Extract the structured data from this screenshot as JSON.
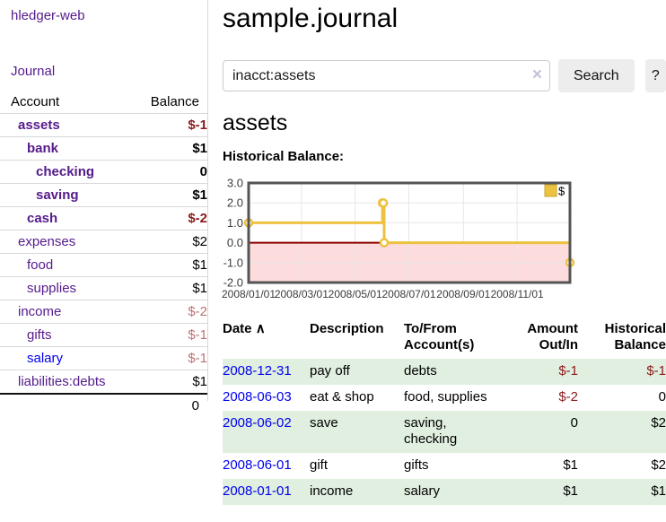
{
  "app": {
    "title": "hledger-web",
    "nav_journal": "Journal"
  },
  "colors": {
    "link_visited": "#551A8B",
    "link_unvisited": "#0000EE",
    "negative_strong": "#8b1a1a",
    "negative_weak": "#bd7272",
    "row_highlight_green": "#e0efdf",
    "button_bg": "#ededed",
    "chart_line_gold": "#edc240",
    "chart_negative_region": "#fcdcdc",
    "chart_zero_line": "#8b0000"
  },
  "sidebar": {
    "header": {
      "account": "Account",
      "balance": "Balance"
    },
    "accounts": [
      {
        "name": "assets",
        "balance": "$-1",
        "indent": 1,
        "bold": true,
        "balance_style": "neg-strong"
      },
      {
        "name": "bank",
        "balance": "$1",
        "indent": 2,
        "bold": true,
        "balance_style": "pos"
      },
      {
        "name": "checking",
        "balance": "0",
        "indent": 3,
        "bold": true,
        "balance_style": "pos"
      },
      {
        "name": "saving",
        "balance": "$1",
        "indent": 3,
        "bold": true,
        "balance_style": "pos"
      },
      {
        "name": "cash",
        "balance": "$-2",
        "indent": 2,
        "bold": true,
        "balance_style": "neg-strong"
      },
      {
        "name": "expenses",
        "balance": "$2",
        "indent": 1,
        "bold": false,
        "balance_style": "pos"
      },
      {
        "name": "food",
        "balance": "$1",
        "indent": 2,
        "bold": false,
        "balance_style": "pos"
      },
      {
        "name": "supplies",
        "balance": "$1",
        "indent": 2,
        "bold": false,
        "balance_style": "pos"
      },
      {
        "name": "income",
        "balance": "$-2",
        "indent": 1,
        "bold": false,
        "balance_style": "neg-weak"
      },
      {
        "name": "gifts",
        "balance": "$-1",
        "indent": 2,
        "bold": false,
        "balance_style": "neg-weak"
      },
      {
        "name": "salary",
        "balance": "$-1",
        "indent": 2,
        "bold": false,
        "balance_style": "neg-weak",
        "link_style": "unvisited"
      },
      {
        "name": "liabilities:debts",
        "balance": "$1",
        "indent": 1,
        "bold": false,
        "balance_style": "pos"
      }
    ],
    "total": "0"
  },
  "main": {
    "title": "sample.journal",
    "search": {
      "value": "inacct:assets",
      "clear_icon": "×",
      "button": "Search",
      "help_button": "?"
    },
    "account_heading": "assets",
    "chart_label": "Historical Balance:"
  },
  "chart_data": {
    "type": "line",
    "step": true,
    "title": "Historical Balance:",
    "series": [
      {
        "name": "$",
        "color": "#edc240",
        "points": [
          [
            "2008-01-01",
            1
          ],
          [
            "2008-06-01",
            2
          ],
          [
            "2008-06-02",
            2
          ],
          [
            "2008-06-03",
            0
          ],
          [
            "2008-12-31",
            -1
          ]
        ]
      }
    ],
    "x_ticks": [
      "2008/01/01",
      "2008/03/01",
      "2008/05/01",
      "2008/07/01",
      "2008/09/01",
      "2008/11/01"
    ],
    "y_ticks": [
      "3.0",
      "2.0",
      "1.0",
      "0.0",
      "-1.0",
      "-2.0"
    ],
    "ylim": [
      -2,
      3
    ],
    "x_range": [
      "2008-01-01",
      "2008-12-31"
    ],
    "x_span_days": 365,
    "grid": true,
    "legend": {
      "label": "$",
      "position": "top-right",
      "color": "#edc240",
      "box_border": "#c7a62e"
    },
    "negative_region_color": "#fcdcdc",
    "zero_line_color": "#8b0000",
    "grid_color": "#e7e7e7",
    "border_color": "#545454",
    "axis_label_color": "#3c3c3c"
  },
  "register": {
    "headers": {
      "date": "Date",
      "sort": "∧",
      "description": "Description",
      "accounts": "To/From Account(s)",
      "amount": "Amount Out/In",
      "balance": "Historical Balance"
    },
    "rows": [
      {
        "date": "2008-12-31",
        "description": "pay off",
        "accounts": "debts",
        "amount": "$-1",
        "amount_neg": true,
        "balance": "$-1",
        "balance_neg": true
      },
      {
        "date": "2008-06-03",
        "description": "eat & shop",
        "accounts": "food, supplies",
        "amount": "$-2",
        "amount_neg": true,
        "balance": "0",
        "balance_neg": false
      },
      {
        "date": "2008-06-02",
        "description": "save",
        "accounts": "saving, checking",
        "amount": "0",
        "amount_neg": false,
        "balance": "$2",
        "balance_neg": false
      },
      {
        "date": "2008-06-01",
        "description": "gift",
        "accounts": "gifts",
        "amount": "$1",
        "amount_neg": false,
        "balance": "$2",
        "balance_neg": false
      },
      {
        "date": "2008-01-01",
        "description": "income",
        "accounts": "salary",
        "amount": "$1",
        "amount_neg": false,
        "balance": "$1",
        "balance_neg": false
      }
    ]
  }
}
